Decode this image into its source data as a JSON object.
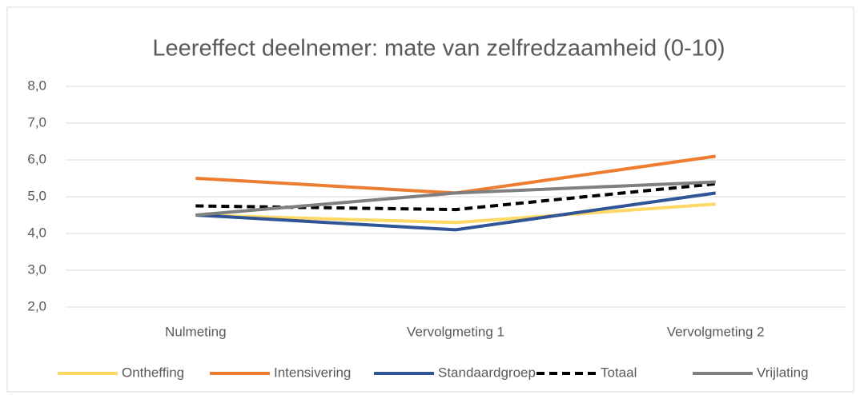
{
  "chart_data": {
    "type": "line",
    "title": "Leereffect deelnemer: mate van zelfredzaamheid (0-10)",
    "categories": [
      "Nulmeting",
      "Vervolgmeting 1",
      "Vervolgmeting 2"
    ],
    "series": [
      {
        "name": "Ontheffing",
        "color": "#ffd966",
        "values": [
          4.5,
          4.3,
          4.8
        ]
      },
      {
        "name": "Intensivering",
        "color": "#ed7d31",
        "values": [
          5.5,
          5.1,
          6.1
        ]
      },
      {
        "name": "Standaardgroep",
        "color": "#2f5597",
        "values": [
          4.5,
          4.1,
          5.1
        ]
      },
      {
        "name": "Totaal",
        "color": "#000000",
        "dashed": true,
        "values": [
          4.75,
          4.65,
          5.35
        ]
      },
      {
        "name": "Vrijlating",
        "color": "#7f7f7f",
        "values": [
          4.5,
          5.1,
          5.4
        ]
      }
    ],
    "ylim": [
      2,
      8
    ],
    "yticks": [
      {
        "value": 2,
        "label": "2,0"
      },
      {
        "value": 3,
        "label": "3,0"
      },
      {
        "value": 4,
        "label": "4,0"
      },
      {
        "value": 5,
        "label": "5,0"
      },
      {
        "value": 6,
        "label": "6,0"
      },
      {
        "value": 7,
        "label": "7,0"
      },
      {
        "value": 8,
        "label": "8,0"
      }
    ],
    "grid": true,
    "legend": "bottom"
  }
}
